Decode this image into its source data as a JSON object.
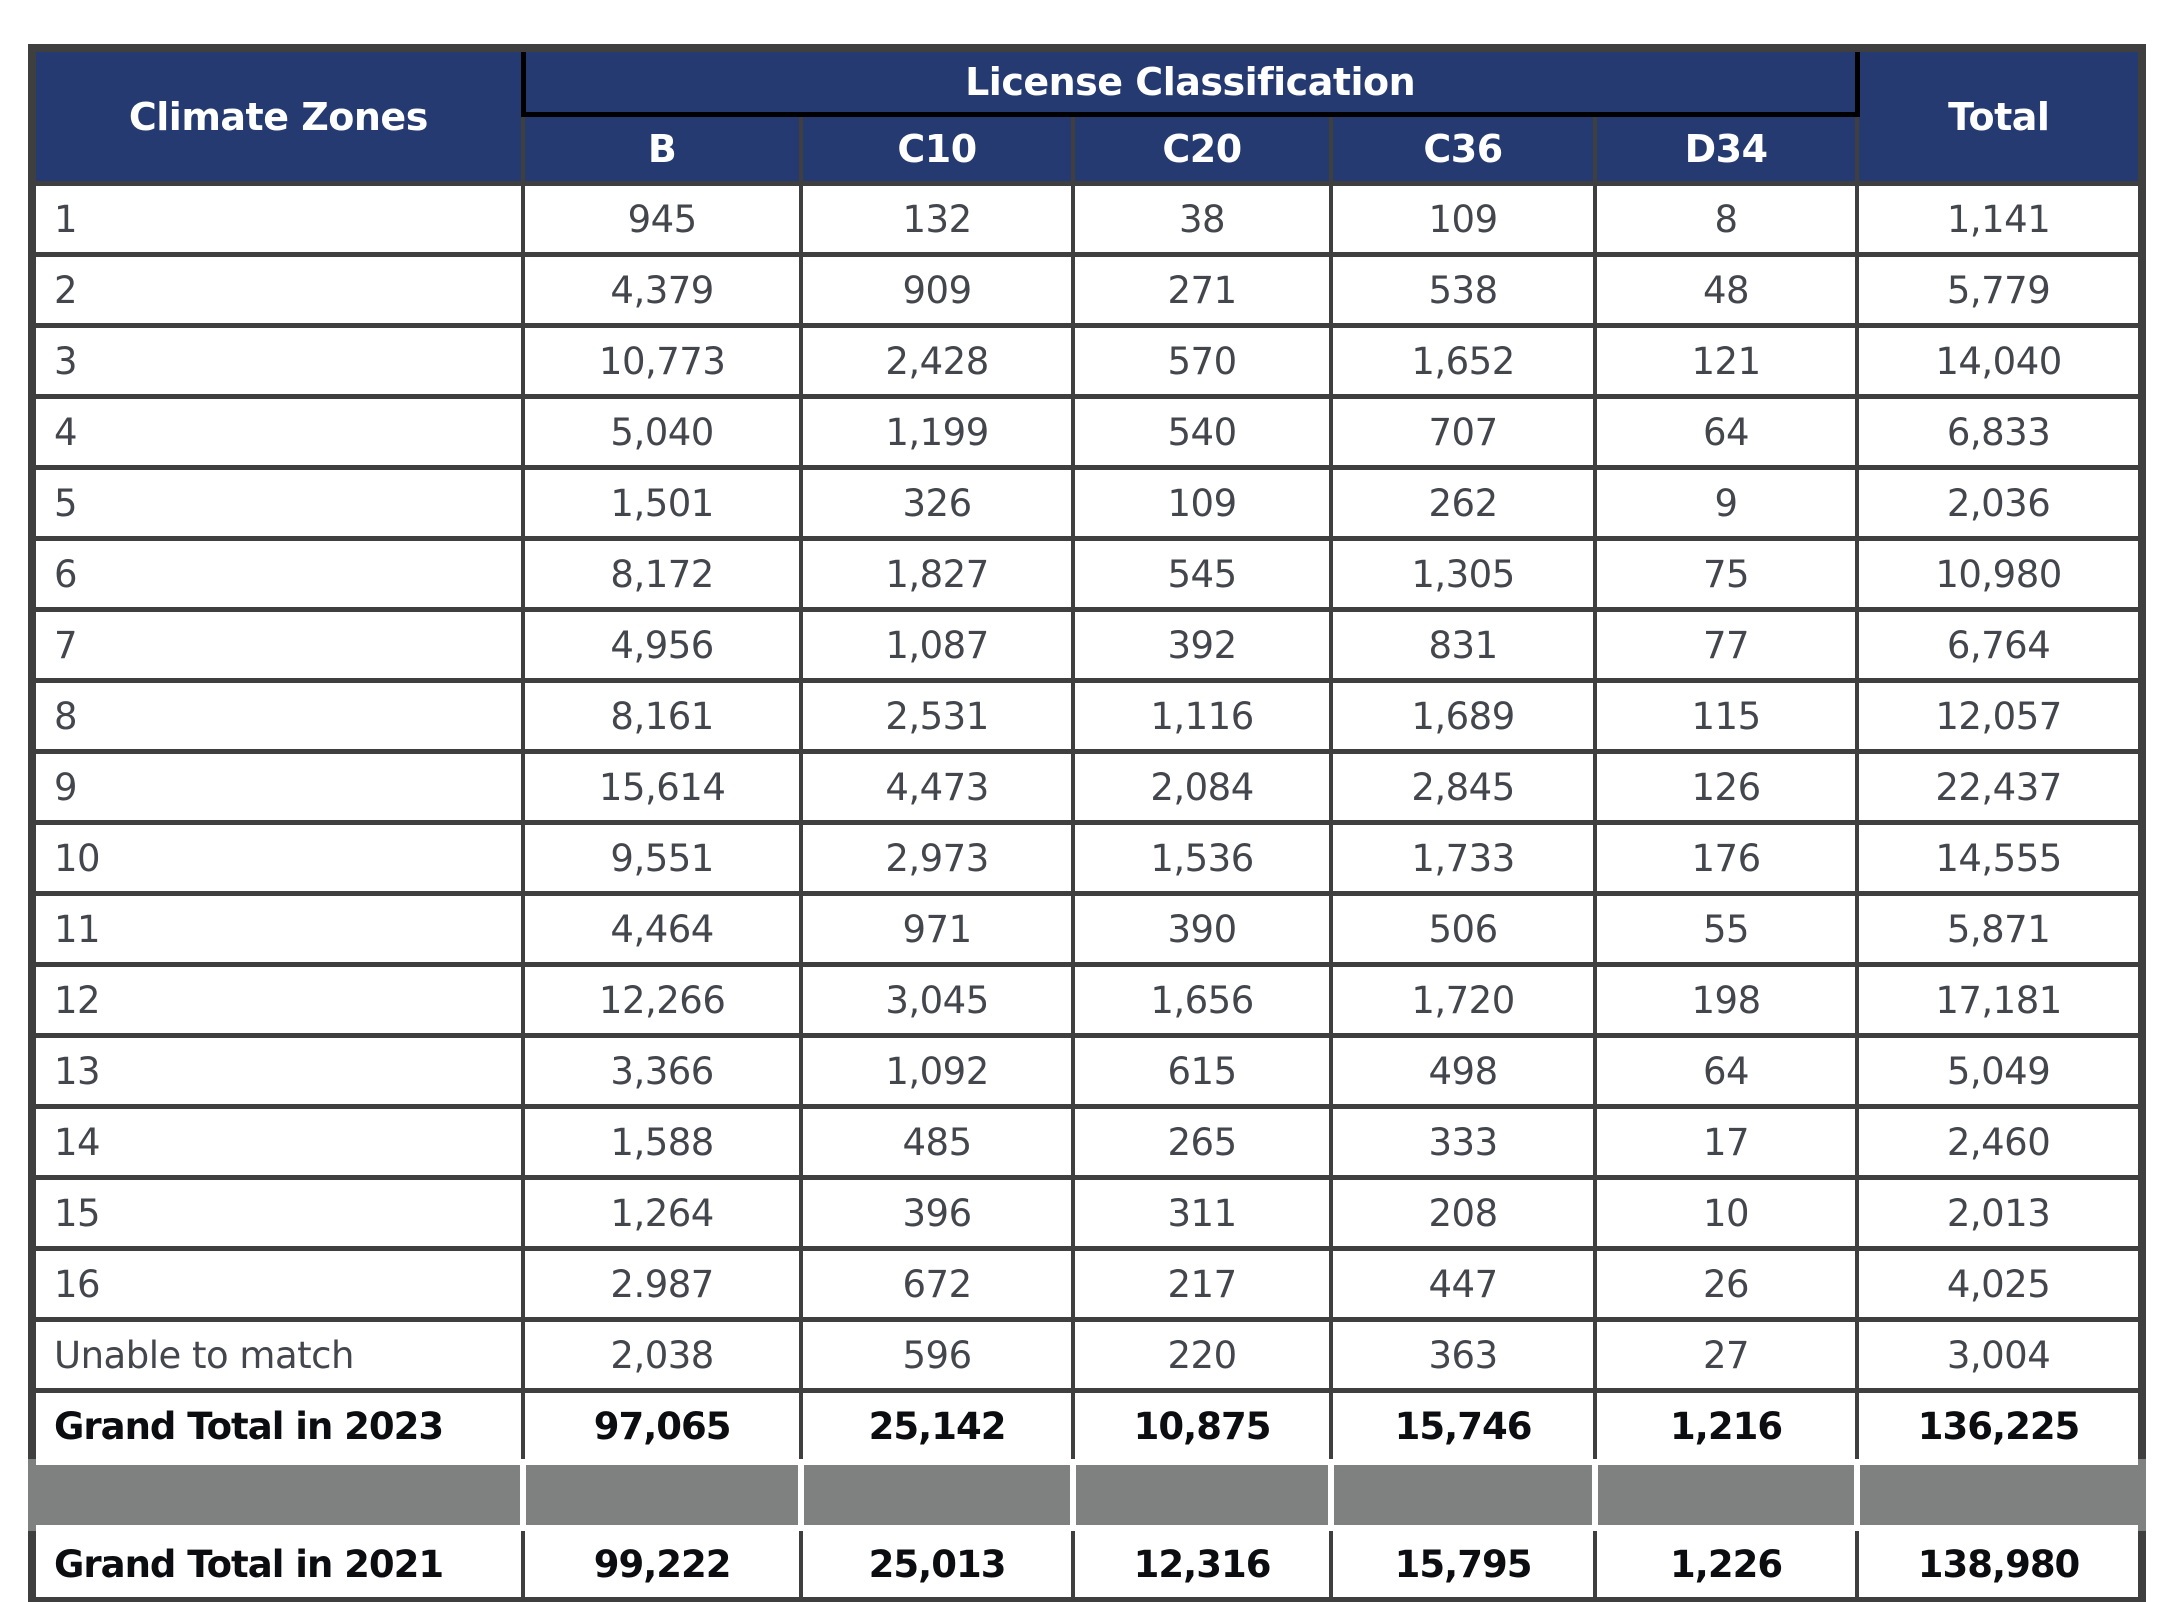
{
  "colors": {
    "header_background": "#253a70",
    "header_text": "#ffffff",
    "grid_border": "#3f3f3f",
    "header_accent_line": "#000000",
    "separator_row_fill": "#7f8181",
    "data_text": "#43464c",
    "grand_total_text": "#0c0d10",
    "page_background": "#ffffff"
  },
  "table": {
    "header": {
      "row_label_header": "Climate Zones",
      "group_header": "License Classification",
      "total_header": "Total",
      "columns": [
        "B",
        "C10",
        "C20",
        "C36",
        "D34"
      ]
    },
    "rows": [
      {
        "kind": "data",
        "label": "1",
        "values": [
          "945",
          "132",
          "38",
          "109",
          "8"
        ],
        "total": "1,141"
      },
      {
        "kind": "data",
        "label": "2",
        "values": [
          "4,379",
          "909",
          "271",
          "538",
          "48"
        ],
        "total": "5,779"
      },
      {
        "kind": "data",
        "label": "3",
        "values": [
          "10,773",
          "2,428",
          "570",
          "1,652",
          "121"
        ],
        "total": "14,040"
      },
      {
        "kind": "data",
        "label": "4",
        "values": [
          "5,040",
          "1,199",
          "540",
          "707",
          "64"
        ],
        "total": "6,833"
      },
      {
        "kind": "data",
        "label": "5",
        "values": [
          "1,501",
          "326",
          "109",
          "262",
          "9"
        ],
        "total": "2,036"
      },
      {
        "kind": "data",
        "label": "6",
        "values": [
          "8,172",
          "1,827",
          "545",
          "1,305",
          "75"
        ],
        "total": "10,980"
      },
      {
        "kind": "data",
        "label": "7",
        "values": [
          "4,956",
          "1,087",
          "392",
          "831",
          "77"
        ],
        "total": "6,764"
      },
      {
        "kind": "data",
        "label": "8",
        "values": [
          "8,161",
          "2,531",
          "1,116",
          "1,689",
          "115"
        ],
        "total": "12,057"
      },
      {
        "kind": "data",
        "label": "9",
        "values": [
          "15,614",
          "4,473",
          "2,084",
          "2,845",
          "126"
        ],
        "total": "22,437"
      },
      {
        "kind": "data",
        "label": "10",
        "values": [
          "9,551",
          "2,973",
          "1,536",
          "1,733",
          "176"
        ],
        "total": "14,555"
      },
      {
        "kind": "data",
        "label": "11",
        "values": [
          "4,464",
          "971",
          "390",
          "506",
          "55"
        ],
        "total": "5,871"
      },
      {
        "kind": "data",
        "label": "12",
        "values": [
          "12,266",
          "3,045",
          "1,656",
          "1,720",
          "198"
        ],
        "total": "17,181"
      },
      {
        "kind": "data",
        "label": "13",
        "values": [
          "3,366",
          "1,092",
          "615",
          "498",
          "64"
        ],
        "total": "5,049"
      },
      {
        "kind": "data",
        "label": "14",
        "values": [
          "1,588",
          "485",
          "265",
          "333",
          "17"
        ],
        "total": "2,460"
      },
      {
        "kind": "data",
        "label": "15",
        "values": [
          "1,264",
          "396",
          "311",
          "208",
          "10"
        ],
        "total": "2,013"
      },
      {
        "kind": "data",
        "label": "16",
        "values": [
          "2.987",
          "672",
          "217",
          "447",
          "26"
        ],
        "total": "4,025"
      },
      {
        "kind": "data",
        "label": "Unable to match",
        "values": [
          "2,038",
          "596",
          "220",
          "363",
          "27"
        ],
        "total": "3,004"
      },
      {
        "kind": "grand",
        "label": "Grand Total in 2023",
        "values": [
          "97,065",
          "25,142",
          "10,875",
          "15,746",
          "1,216"
        ],
        "total": "136,225"
      },
      {
        "kind": "separator",
        "label": "",
        "values": [
          "",
          "",
          "",
          "",
          ""
        ],
        "total": ""
      },
      {
        "kind": "grand",
        "label": "Grand Total in 2021",
        "values": [
          "99,222",
          "25,013",
          "12,316",
          "15,795",
          "1,226"
        ],
        "total": "138,980"
      }
    ]
  }
}
